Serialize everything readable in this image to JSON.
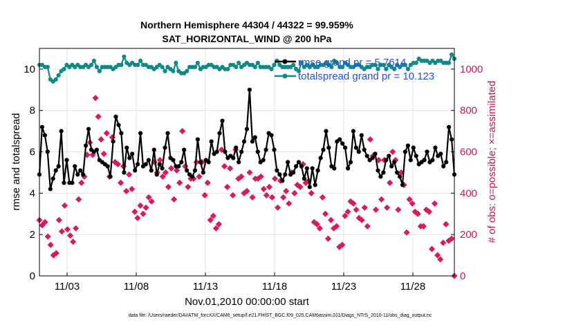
{
  "chart_data": {
    "type": "line",
    "title": "Northern Hemisphere 44304 / 44322 = 99.959%",
    "subtitle": "SAT_HORIZONTAL_WIND @ 200 hPa",
    "xlabel": "Nov.01,2010 00:00:00 start",
    "ylabel_left": "rmse and totalspread",
    "ylabel_right": "# of obs: o=possible; ×=assimilated",
    "footer": "data file: /Users/raeder/DAI/ATM_forcXX/CAM6_setup/f.e21.FHIST_BGC.f09_025.CAM6assim.011/Diags_NTrS_2010-11/obs_diag_output.nc",
    "x_ticks": [
      "11/03",
      "11/08",
      "11/13",
      "11/18",
      "11/23",
      "11/28"
    ],
    "x_tick_days": [
      3,
      8,
      13,
      18,
      23,
      28
    ],
    "xlim": [
      1,
      31
    ],
    "ylim_left": [
      0,
      11
    ],
    "ylim_right": [
      0,
      1100
    ],
    "yticks_left": [
      "0",
      "2",
      "4",
      "6",
      "8",
      "10"
    ],
    "yticks_right": [
      "0",
      "200",
      "400",
      "600",
      "800",
      "1000"
    ],
    "grid": true,
    "legend_position": "top-right",
    "colors": {
      "rmse": "#000000",
      "spread": "#0f8a86",
      "obs": "#d81b5a",
      "right_axis": "#c2185b",
      "legend_text": "#1f4fe0"
    },
    "series": [
      {
        "name": "rmse grand pr = 5.7614",
        "axis": "left",
        "marker": "circle",
        "values": [
          4.9,
          7.2,
          6.8,
          6.0,
          4.2,
          4.7,
          5.1,
          5.3,
          7.0,
          4.5,
          5.6,
          4.5,
          4.5,
          5.3,
          4.9,
          5.1,
          4.9,
          6.3,
          7.1,
          6.1,
          6.0,
          6.1,
          5.6,
          5.5,
          5.4,
          5.3,
          4.8,
          6.5,
          7.7,
          7.3,
          6.9,
          5.0,
          6.2,
          5.7,
          5.9,
          5.1,
          5.4,
          6.9,
          5.3,
          5.4,
          5.6,
          5.1,
          6.1,
          4.9,
          5.4,
          5.2,
          6.2,
          6.9,
          5.7,
          5.6,
          5.3,
          5.3,
          5.5,
          6.1,
          5.1,
          4.9,
          4.8,
          5.1,
          6.6,
          5.5,
          5.0,
          5.6,
          5.5,
          6.5,
          5.9,
          6.0,
          6.9,
          7.5,
          6.0,
          5.7,
          5.8,
          5.7,
          6.2,
          5.5,
          6.0,
          6.5,
          7.1,
          9.0,
          6.5,
          6.7,
          6.0,
          5.5,
          5.6,
          6.1,
          6.9,
          6.8,
          6.1,
          5.1,
          4.9,
          4.6,
          4.9,
          5.5,
          4.9,
          5.0,
          5.3,
          5.5,
          5.3,
          4.7,
          5.2,
          4.3,
          5.2,
          4.4,
          5.1,
          5.7,
          6.1,
          7.0,
          6.2,
          5.3,
          5.2,
          6.5,
          6.6,
          6.4,
          6.2,
          5.2,
          5.5,
          7.0,
          6.2,
          6.0,
          6.8,
          6.1,
          5.8,
          5.6,
          5.7,
          5.9,
          5.1,
          4.8,
          5.0,
          5.6,
          5.8,
          5.3,
          5.5,
          5.0,
          4.8,
          4.4,
          6.0,
          6.3,
          5.6,
          6.2,
          5.8,
          5.4,
          5.5,
          5.6,
          6.0,
          5.5,
          5.6,
          6.2,
          5.8,
          5.9,
          5.3,
          5.5,
          7.2,
          6.6,
          4.9
        ]
      },
      {
        "name": "totalspread grand pr = 10.123",
        "axis": "left",
        "marker": "circle",
        "values": [
          10.2,
          10.2,
          10.1,
          10.1,
          9.5,
          9.4,
          9.5,
          9.7,
          9.9,
          10.0,
          10.2,
          10.1,
          10.2,
          10.1,
          10.2,
          10.1,
          10.1,
          10.2,
          10.1,
          10.2,
          10.4,
          10.1,
          9.9,
          10.1,
          10.1,
          10.1,
          10.1,
          10.0,
          10.1,
          10.2,
          10.2,
          10.6,
          10.3,
          10.2,
          10.3,
          10.2,
          10.2,
          10.4,
          10.2,
          10.2,
          10.1,
          10.1,
          10.0,
          10.1,
          10.2,
          10.1,
          9.9,
          10.1,
          10.0,
          9.9,
          10.3,
          9.9,
          9.8,
          9.8,
          9.9,
          10.1,
          10.1,
          10.1,
          10.3,
          10.0,
          10.1,
          10.1,
          10.2,
          10.2,
          10.1,
          10.1,
          10.0,
          10.1,
          10.0,
          10.0,
          10.2,
          10.2,
          10.1,
          10.3,
          10.1,
          10.2,
          10.3,
          10.2,
          10.2,
          10.1,
          10.3,
          10.1,
          10.1,
          10.1,
          10.1,
          10.0,
          10.2,
          10.4,
          10.2,
          10.1,
          10.1,
          10.1,
          10.1,
          10.2,
          10.0,
          9.9,
          10.3,
          10.1,
          10.2,
          10.1,
          10.2,
          10.1,
          10.1,
          10.2,
          10.2,
          10.3,
          10.2,
          10.1,
          10.4,
          10.3,
          10.1,
          10.1,
          10.3,
          10.2,
          10.1,
          10.1,
          10.2,
          10.2,
          10.1,
          10.0,
          10.1,
          10.1,
          10.2,
          10.2,
          10.0,
          10.2,
          10.2,
          10.0,
          10.2,
          10.1,
          10.0,
          10.2,
          10.1,
          10.2,
          10.2,
          10.0,
          10.2,
          10.3,
          10.3,
          10.5,
          10.4,
          10.4,
          10.4,
          10.3,
          10.4,
          10.3,
          10.4,
          10.4,
          10.3,
          10.3,
          10.3,
          10.7,
          10.5
        ]
      },
      {
        "name": "# of obs assimilated",
        "axis": "right",
        "marker": "diamond",
        "values": [
          270,
          245,
          260,
          190,
          150,
          100,
          110,
          270,
          215,
          340,
          225,
          195,
          165,
          230,
          370,
          450,
          480,
          585,
          645,
          585,
          860,
          770,
          660,
          590,
          690,
          480,
          670,
          550,
          540,
          450,
          530,
          410,
          490,
          420,
          310,
          280,
          340,
          300,
          330,
          380,
          360,
          550,
          500,
          560,
          480,
          500,
          430,
          520,
          370,
          510,
          450,
          700,
          530,
          430,
          470,
          470,
          550,
          480,
          550,
          390,
          450,
          270,
          290,
          230,
          250,
          610,
          530,
          430,
          520,
          390,
          610,
          470,
          480,
          400,
          410,
          500,
          380,
          470,
          470,
          480,
          420,
          390,
          430,
          380,
          470,
          330,
          460,
          380,
          410,
          350,
          500,
          400,
          440,
          430,
          540,
          450,
          460,
          400,
          260,
          250,
          230,
          380,
          300,
          180,
          270,
          230,
          240,
          140,
          150,
          290,
          310,
          360,
          350,
          320,
          280,
          270,
          330,
          240,
          660,
          580,
          320,
          560,
          370,
          560,
          330,
          450,
          600,
          560,
          320,
          500,
          440,
          210,
          370,
          350,
          310,
          300,
          240,
          240,
          320,
          310,
          130,
          350,
          100,
          80,
          160,
          250,
          170,
          180,
          0
        ]
      }
    ]
  }
}
